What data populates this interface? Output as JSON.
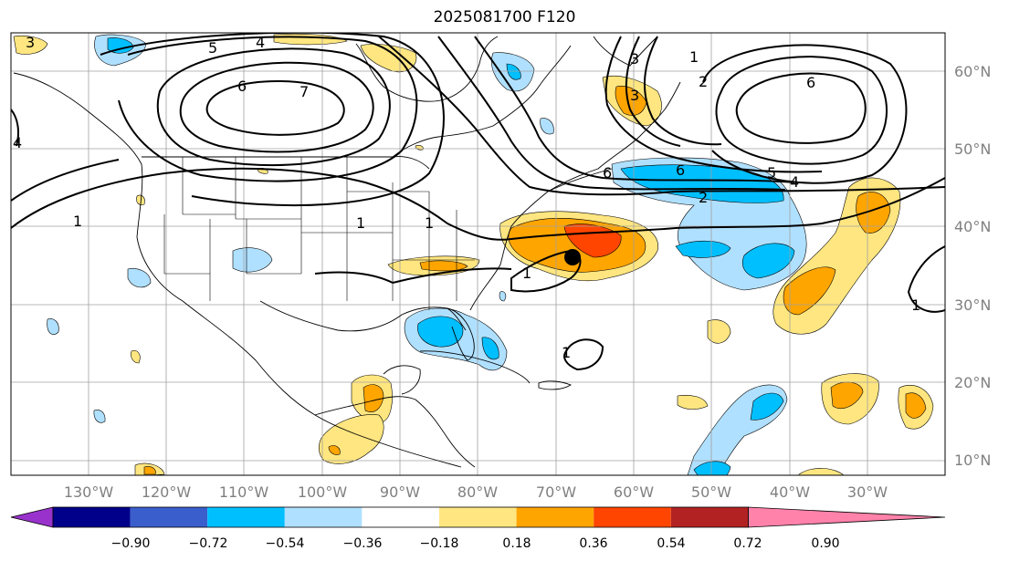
{
  "title": "2025081700 F120",
  "lat_labels": [
    "60°N",
    "50°N",
    "40°N",
    "30°N",
    "20°N",
    "10°N"
  ],
  "lon_labels": [
    "130°W",
    "120°W",
    "110°W",
    "100°W",
    "90°W",
    "80°W",
    "70°W",
    "60°W",
    "50°W",
    "40°W",
    "30°W"
  ],
  "colorbar": {
    "ticks": [
      "−0.90",
      "−0.72",
      "−0.54",
      "−0.36",
      "−0.18",
      "0.18",
      "0.36",
      "0.54",
      "0.72",
      "0.90"
    ],
    "colors": [
      "#9932cc",
      "#00008b",
      "#3a5fcd",
      "#00bfff",
      "#b0e0ff",
      "#ffffff",
      "#ffe680",
      "#ffa500",
      "#ff4500",
      "#b22222",
      "#ff82ab"
    ]
  },
  "contour_labels": [
    "3",
    "5",
    "4",
    "6",
    "7",
    "4",
    "1",
    "1",
    "2",
    "3",
    "1",
    "6",
    "1",
    "3",
    "2",
    "5",
    "4",
    "6",
    "1",
    "1",
    "1",
    "6"
  ],
  "storm_marker": "tropical-cyclone-center"
}
